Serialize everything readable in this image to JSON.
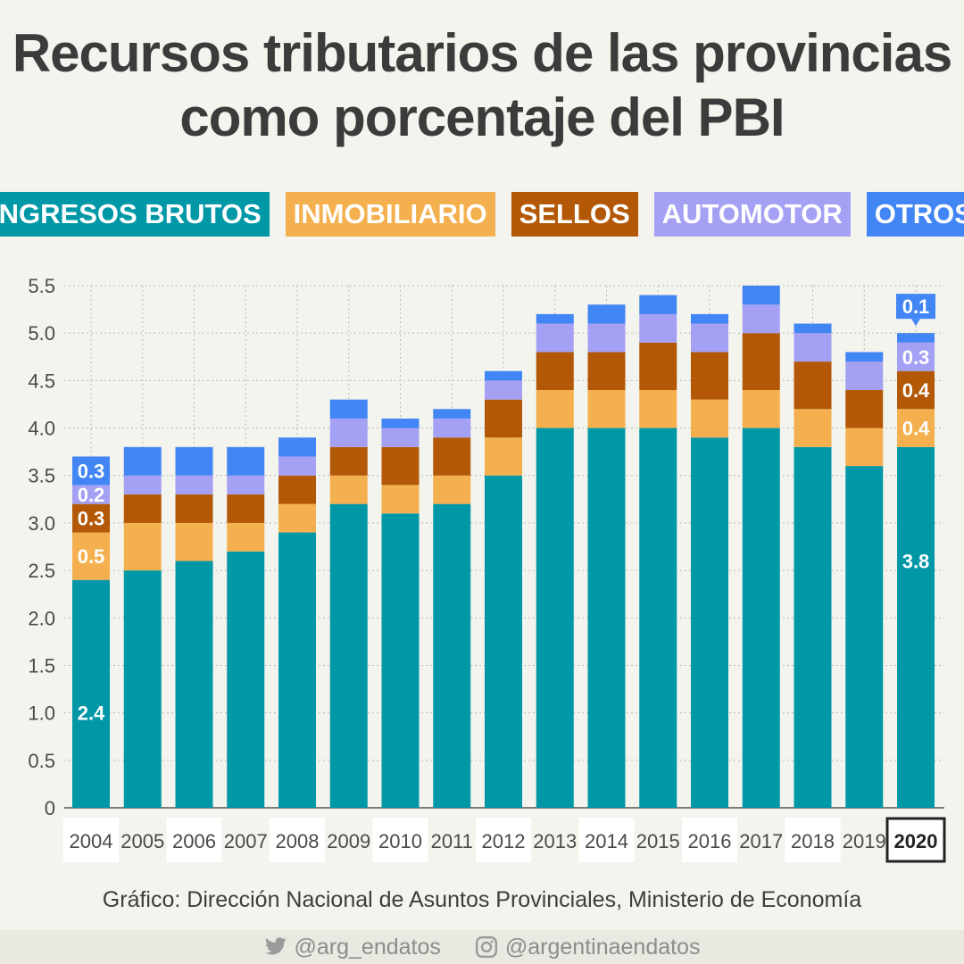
{
  "title_line1": "Recursos tributarios de las provincias",
  "title_line2": "como porcentaje del PBI",
  "legend": [
    {
      "label": "INGRESOS BRUTOS",
      "color": "#0097a7"
    },
    {
      "label": "INMOBILIARIO",
      "color": "#f4b04f"
    },
    {
      "label": "SELLOS",
      "color": "#b35806"
    },
    {
      "label": "AUTOMOTOR",
      "color": "#a4a0f3"
    },
    {
      "label": "OTROS",
      "color": "#4285f4"
    }
  ],
  "chart_data": {
    "type": "bar",
    "stacked": true,
    "categories": [
      "2004",
      "2005",
      "2006",
      "2007",
      "2008",
      "2009",
      "2010",
      "2011",
      "2012",
      "2013",
      "2014",
      "2015",
      "2016",
      "2017",
      "2018",
      "2019",
      "2020"
    ],
    "highlight_category": "2020",
    "ylim": [
      0,
      5.5
    ],
    "yticks": [
      "0",
      "0.5",
      "1.0",
      "1.5",
      "2.0",
      "2.5",
      "3.0",
      "3.5",
      "4.0",
      "4.5",
      "5.0",
      "5.5"
    ],
    "grid": true,
    "series": [
      {
        "name": "INGRESOS BRUTOS",
        "color": "#0097a7",
        "values": [
          2.4,
          2.5,
          2.6,
          2.7,
          2.9,
          3.2,
          3.1,
          3.2,
          3.5,
          4.0,
          4.0,
          4.0,
          3.9,
          4.0,
          3.8,
          3.6,
          3.8
        ]
      },
      {
        "name": "INMOBILIARIO",
        "color": "#f4b04f",
        "values": [
          0.5,
          0.5,
          0.4,
          0.3,
          0.3,
          0.3,
          0.3,
          0.3,
          0.4,
          0.4,
          0.4,
          0.4,
          0.4,
          0.4,
          0.4,
          0.4,
          0.4
        ]
      },
      {
        "name": "SELLOS",
        "color": "#b35806",
        "values": [
          0.3,
          0.3,
          0.3,
          0.3,
          0.3,
          0.3,
          0.4,
          0.4,
          0.4,
          0.4,
          0.4,
          0.5,
          0.5,
          0.6,
          0.5,
          0.4,
          0.4
        ]
      },
      {
        "name": "AUTOMOTOR",
        "color": "#a4a0f3",
        "values": [
          0.2,
          0.2,
          0.2,
          0.2,
          0.2,
          0.3,
          0.2,
          0.2,
          0.2,
          0.3,
          0.3,
          0.3,
          0.3,
          0.3,
          0.3,
          0.3,
          0.3
        ]
      },
      {
        "name": "OTROS",
        "color": "#4285f4",
        "values": [
          0.3,
          0.3,
          0.3,
          0.3,
          0.2,
          0.2,
          0.1,
          0.1,
          0.1,
          0.1,
          0.2,
          0.2,
          0.1,
          0.2,
          0.1,
          0.1,
          0.1
        ]
      }
    ],
    "data_labels": [
      {
        "category": "2004",
        "series": "INGRESOS BRUTOS",
        "text": "2.4"
      },
      {
        "category": "2004",
        "series": "INMOBILIARIO",
        "text": "0.5"
      },
      {
        "category": "2004",
        "series": "SELLOS",
        "text": "0.3"
      },
      {
        "category": "2004",
        "series": "AUTOMOTOR",
        "text": "0.2"
      },
      {
        "category": "2004",
        "series": "OTROS",
        "text": "0.3"
      },
      {
        "category": "2020",
        "series": "INGRESOS BRUTOS",
        "text": "3.8"
      },
      {
        "category": "2020",
        "series": "INMOBILIARIO",
        "text": "0.4"
      },
      {
        "category": "2020",
        "series": "SELLOS",
        "text": "0.4"
      },
      {
        "category": "2020",
        "series": "AUTOMOTOR",
        "text": "0.3"
      },
      {
        "category": "2020",
        "series": "OTROS",
        "text": "0.1"
      }
    ]
  },
  "source": "Gráfico: Dirección Nacional de Asuntos Provinciales, Ministerio de Economía",
  "footer": {
    "twitter_icon": "twitter-icon",
    "twitter": "@arg_endatos",
    "instagram_icon": "instagram-icon",
    "instagram": "@argentinaendatos"
  }
}
